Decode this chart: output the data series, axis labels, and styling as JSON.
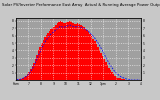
{
  "title": "Solar PV/Inverter Performance East Array  Actual & Running Average Power Output",
  "title_fontsize": 2.8,
  "background_color": "#c8c8c8",
  "plot_bg_color": "#a0a0a0",
  "bar_color": "#ff0000",
  "line_color": "#0000ff",
  "n_bars": 80,
  "bar_heights": [
    0.0,
    0.0,
    0.01,
    0.02,
    0.03,
    0.05,
    0.07,
    0.1,
    0.14,
    0.18,
    0.23,
    0.29,
    0.36,
    0.43,
    0.5,
    0.56,
    0.62,
    0.67,
    0.72,
    0.76,
    0.8,
    0.83,
    0.86,
    0.88,
    0.9,
    0.93,
    0.96,
    0.99,
    1.0,
    0.98,
    0.96,
    0.97,
    0.98,
    0.99,
    1.0,
    0.98,
    0.96,
    0.94,
    0.95,
    0.96,
    0.95,
    0.93,
    0.91,
    0.89,
    0.87,
    0.84,
    0.81,
    0.78,
    0.74,
    0.7,
    0.66,
    0.61,
    0.56,
    0.51,
    0.46,
    0.41,
    0.36,
    0.31,
    0.26,
    0.21,
    0.17,
    0.13,
    0.1,
    0.07,
    0.05,
    0.04,
    0.03,
    0.02,
    0.01,
    0.01,
    0.0,
    0.0,
    0.0,
    0.0,
    0.0,
    0.0,
    0.0,
    0.0,
    0.0,
    0.0
  ],
  "avg_line_y": [
    0.01,
    0.01,
    0.01,
    0.02,
    0.03,
    0.04,
    0.06,
    0.08,
    0.11,
    0.15,
    0.19,
    0.24,
    0.3,
    0.36,
    0.42,
    0.48,
    0.54,
    0.59,
    0.64,
    0.68,
    0.72,
    0.75,
    0.78,
    0.8,
    0.82,
    0.85,
    0.87,
    0.89,
    0.91,
    0.9,
    0.89,
    0.9,
    0.91,
    0.92,
    0.93,
    0.92,
    0.91,
    0.9,
    0.9,
    0.91,
    0.9,
    0.89,
    0.88,
    0.87,
    0.86,
    0.84,
    0.82,
    0.8,
    0.77,
    0.74,
    0.71,
    0.67,
    0.63,
    0.59,
    0.54,
    0.49,
    0.44,
    0.39,
    0.34,
    0.29,
    0.25,
    0.21,
    0.17,
    0.14,
    0.11,
    0.09,
    0.07,
    0.05,
    0.04,
    0.03,
    0.02,
    0.01,
    0.01,
    0.0,
    0.0,
    0.0,
    0.0,
    0.0,
    0.0,
    0.0
  ],
  "ylim": [
    0,
    1.05
  ],
  "xlim": [
    0,
    80
  ],
  "ytick_vals": [
    0.125,
    0.25,
    0.375,
    0.5,
    0.625,
    0.75,
    0.875,
    1.0
  ],
  "ytick_labels": [
    "1",
    "2",
    "3",
    "4",
    "5",
    "6",
    "7",
    "8"
  ],
  "x_tick_positions": [
    0,
    8,
    16,
    24,
    32,
    40,
    48,
    56,
    64,
    72,
    80
  ],
  "x_tick_labels": [
    "6am",
    "7",
    "8",
    "9",
    "10",
    "11",
    "12",
    "1pm",
    "2",
    "3",
    "4"
  ],
  "grid_v_positions": [
    8,
    16,
    24,
    32,
    40,
    48,
    56,
    64,
    72
  ],
  "grid_h_vals": [
    0.125,
    0.25,
    0.375,
    0.5,
    0.625,
    0.75,
    0.875,
    1.0
  ]
}
